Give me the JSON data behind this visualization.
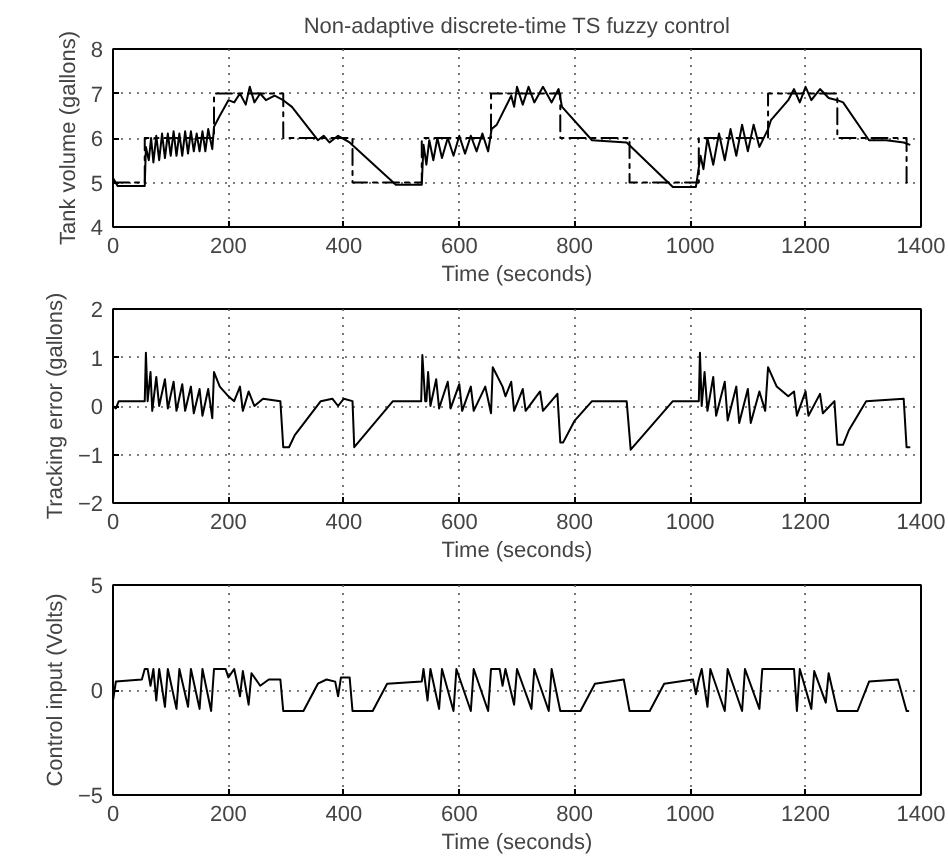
{
  "chart_data": [
    {
      "type": "line",
      "title": "Non-adaptive discrete-time TS fuzzy control",
      "xlabel": "Time (seconds)",
      "ylabel": "Tank volume (gallons)",
      "xlim": [
        0,
        1400
      ],
      "ylim": [
        4,
        8
      ],
      "xticks": [
        0,
        200,
        400,
        600,
        800,
        1000,
        1200,
        1400
      ],
      "yticks": [
        4,
        5,
        6,
        7,
        8
      ],
      "grid": true,
      "series": [
        {
          "color": "#000000",
          "line_style": "solid",
          "x": [
            0,
            8,
            55,
            57,
            62,
            66,
            70,
            75,
            80,
            85,
            90,
            95,
            100,
            105,
            110,
            115,
            120,
            125,
            130,
            135,
            140,
            145,
            150,
            155,
            160,
            165,
            172,
            175,
            185,
            200,
            210,
            220,
            230,
            237,
            245,
            255,
            265,
            280,
            295,
            310,
            355,
            365,
            375,
            390,
            410,
            490,
            535,
            538,
            543,
            548,
            555,
            562,
            570,
            580,
            590,
            600,
            610,
            620,
            630,
            640,
            650,
            656,
            665,
            690,
            695,
            700,
            710,
            720,
            730,
            745,
            760,
            772,
            778,
            830,
            890,
            970,
            1010,
            1018,
            1023,
            1030,
            1040,
            1050,
            1060,
            1070,
            1080,
            1090,
            1100,
            1110,
            1120,
            1135,
            1140,
            1170,
            1180,
            1190,
            1200,
            1210,
            1225,
            1240,
            1255,
            1265,
            1310,
            1340,
            1370,
            1380
          ],
          "values": [
            5.1,
            4.92,
            4.92,
            5.8,
            5.5,
            6.0,
            5.45,
            6.05,
            5.5,
            6.1,
            5.55,
            6.1,
            5.6,
            6.15,
            5.6,
            6.1,
            5.6,
            6.15,
            5.65,
            6.15,
            5.7,
            6.1,
            5.7,
            6.15,
            5.7,
            6.2,
            5.75,
            6.25,
            6.5,
            6.85,
            6.8,
            7.0,
            6.75,
            7.15,
            6.8,
            7.0,
            6.85,
            6.95,
            6.85,
            6.7,
            5.95,
            6.05,
            5.9,
            6.05,
            5.9,
            4.95,
            4.95,
            5.85,
            5.4,
            5.95,
            5.5,
            6.0,
            5.55,
            6.0,
            5.6,
            6.05,
            5.65,
            6.05,
            5.7,
            6.1,
            5.7,
            6.2,
            6.3,
            6.95,
            6.7,
            7.15,
            6.75,
            7.15,
            6.8,
            7.15,
            6.8,
            7.1,
            6.7,
            5.95,
            5.9,
            4.9,
            4.9,
            5.6,
            5.3,
            6.0,
            5.4,
            6.1,
            5.5,
            6.2,
            5.6,
            6.3,
            5.7,
            6.3,
            5.8,
            6.2,
            6.4,
            6.85,
            7.1,
            6.8,
            7.15,
            6.85,
            7.1,
            6.9,
            6.85,
            6.8,
            5.95,
            5.95,
            5.9,
            5.85
          ]
        },
        {
          "type": "step",
          "color": "#000000",
          "line_style": "dashed",
          "x": [
            0,
            55,
            175,
            295,
            415,
            535,
            655,
            775,
            895,
            1015,
            1135,
            1255,
            1375,
            1380
          ],
          "values": [
            5,
            6,
            7,
            6,
            5,
            6,
            7,
            6,
            5,
            6,
            7,
            6,
            5,
            5
          ]
        }
      ]
    },
    {
      "type": "line",
      "xlabel": "Time (seconds)",
      "ylabel": "Tracking error (gallons)",
      "xlim": [
        0,
        1400
      ],
      "ylim": [
        -2,
        2
      ],
      "xticks": [
        0,
        200,
        400,
        600,
        800,
        1000,
        1200,
        1400
      ],
      "yticks": [
        -2,
        -1,
        0,
        1,
        2
      ],
      "grid": true,
      "series": [
        {
          "color": "#000000",
          "line_style": "solid",
          "x": [
            0,
            5,
            10,
            55,
            57,
            60,
            65,
            68,
            75,
            80,
            90,
            95,
            105,
            110,
            120,
            125,
            135,
            140,
            150,
            155,
            165,
            172,
            175,
            185,
            200,
            210,
            220,
            225,
            235,
            245,
            260,
            290,
            295,
            305,
            315,
            360,
            380,
            390,
            400,
            415,
            418,
            485,
            534,
            536,
            541,
            543,
            546,
            550,
            560,
            565,
            580,
            585,
            600,
            605,
            620,
            625,
            645,
            655,
            658,
            675,
            680,
            690,
            695,
            710,
            715,
            740,
            745,
            770,
            775,
            780,
            800,
            830,
            890,
            897,
            970,
            1015,
            1017,
            1020,
            1025,
            1030,
            1040,
            1045,
            1060,
            1065,
            1080,
            1085,
            1100,
            1105,
            1120,
            1130,
            1135,
            1150,
            1170,
            1180,
            1185,
            1200,
            1205,
            1225,
            1230,
            1250,
            1255,
            1265,
            1275,
            1305,
            1370,
            1375,
            1380
          ],
          "values": [
            0,
            -0.05,
            0.1,
            0.1,
            1.1,
            0.1,
            0.7,
            -0.1,
            0.6,
            0,
            0.55,
            -0.05,
            0.5,
            -0.1,
            0.45,
            -0.1,
            0.4,
            -0.15,
            0.35,
            -0.2,
            0.35,
            -0.25,
            0.7,
            0.4,
            0.2,
            0.1,
            0.4,
            -0.1,
            0.3,
            0,
            0.15,
            0.1,
            -0.85,
            -0.85,
            -0.6,
            0.1,
            0.15,
            0,
            0.15,
            0.1,
            -0.85,
            0.1,
            0.1,
            1.05,
            0.1,
            0.1,
            0.7,
            0,
            0.55,
            -0.05,
            0.5,
            -0.05,
            0.45,
            -0.1,
            0.4,
            -0.1,
            0.4,
            -0.15,
            0.8,
            0.4,
            0.2,
            0.5,
            -0.1,
            0.35,
            -0.1,
            0.3,
            -0.1,
            0.25,
            -0.75,
            -0.75,
            -0.3,
            0.1,
            0.1,
            -0.9,
            0.1,
            0.1,
            1.1,
            0,
            0.7,
            -0.1,
            0.6,
            -0.2,
            0.5,
            -0.3,
            0.4,
            -0.35,
            0.35,
            -0.35,
            0.3,
            -0.1,
            0.8,
            0.4,
            0.2,
            0.3,
            -0.2,
            0.3,
            -0.2,
            0.25,
            -0.15,
            0.1,
            -0.8,
            -0.8,
            -0.5,
            0.1,
            0.15,
            -0.85,
            -0.85
          ]
        }
      ]
    },
    {
      "type": "line",
      "xlabel": "Time (seconds)",
      "ylabel": "Control input (Volts)",
      "xlim": [
        0,
        1400
      ],
      "ylim": [
        -5,
        5
      ],
      "xticks": [
        0,
        200,
        400,
        600,
        800,
        1000,
        1200,
        1400
      ],
      "yticks": [
        -5,
        0,
        5
      ],
      "grid": true,
      "series": [
        {
          "color": "#000000",
          "line_style": "solid",
          "x": [
            0,
            5,
            50,
            55,
            60,
            65,
            70,
            75,
            80,
            90,
            95,
            110,
            115,
            130,
            135,
            150,
            155,
            170,
            175,
            195,
            200,
            210,
            220,
            225,
            235,
            240,
            255,
            270,
            290,
            295,
            330,
            355,
            370,
            385,
            390,
            395,
            410,
            415,
            450,
            475,
            535,
            538,
            545,
            550,
            565,
            570,
            590,
            595,
            620,
            625,
            650,
            655,
            670,
            675,
            680,
            695,
            700,
            725,
            730,
            755,
            760,
            775,
            810,
            835,
            885,
            895,
            930,
            955,
            1005,
            1010,
            1015,
            1020,
            1030,
            1035,
            1060,
            1065,
            1090,
            1095,
            1120,
            1125,
            1135,
            1165,
            1180,
            1185,
            1190,
            1210,
            1215,
            1235,
            1240,
            1255,
            1290,
            1310,
            1360,
            1375,
            1378
          ],
          "values": [
            -0.5,
            0.4,
            0.5,
            1.0,
            1.0,
            0.2,
            1.0,
            -0.5,
            1.0,
            -0.8,
            1.0,
            -0.9,
            1.0,
            -0.8,
            1.0,
            -0.9,
            1.0,
            -1.0,
            1.0,
            1.0,
            0.6,
            1.0,
            -0.3,
            0.9,
            -0.7,
            0.8,
            0.2,
            0.5,
            0.5,
            -1.0,
            -1.0,
            0.3,
            0.5,
            0.4,
            -0.3,
            0.6,
            0.6,
            -1.0,
            -1.0,
            0.3,
            0.4,
            1.0,
            -0.5,
            1.0,
            -0.9,
            1.0,
            -1.0,
            1.0,
            -1.0,
            1.0,
            -1.0,
            1.0,
            1.0,
            0.2,
            1.0,
            -0.7,
            1.0,
            -0.9,
            1.0,
            -1.0,
            1.0,
            -1.0,
            -1.0,
            0.3,
            0.5,
            -1.0,
            -1.0,
            0.3,
            0.5,
            -0.2,
            0.5,
            1.0,
            -0.8,
            1.0,
            -1.0,
            1.0,
            -1.0,
            1.0,
            -0.9,
            1.0,
            1.0,
            1.0,
            1.0,
            -1.0,
            1.0,
            -0.9,
            0.9,
            -0.6,
            0.8,
            -1.0,
            -1.0,
            0.4,
            0.5,
            -1.0,
            -1.0
          ]
        }
      ]
    }
  ]
}
